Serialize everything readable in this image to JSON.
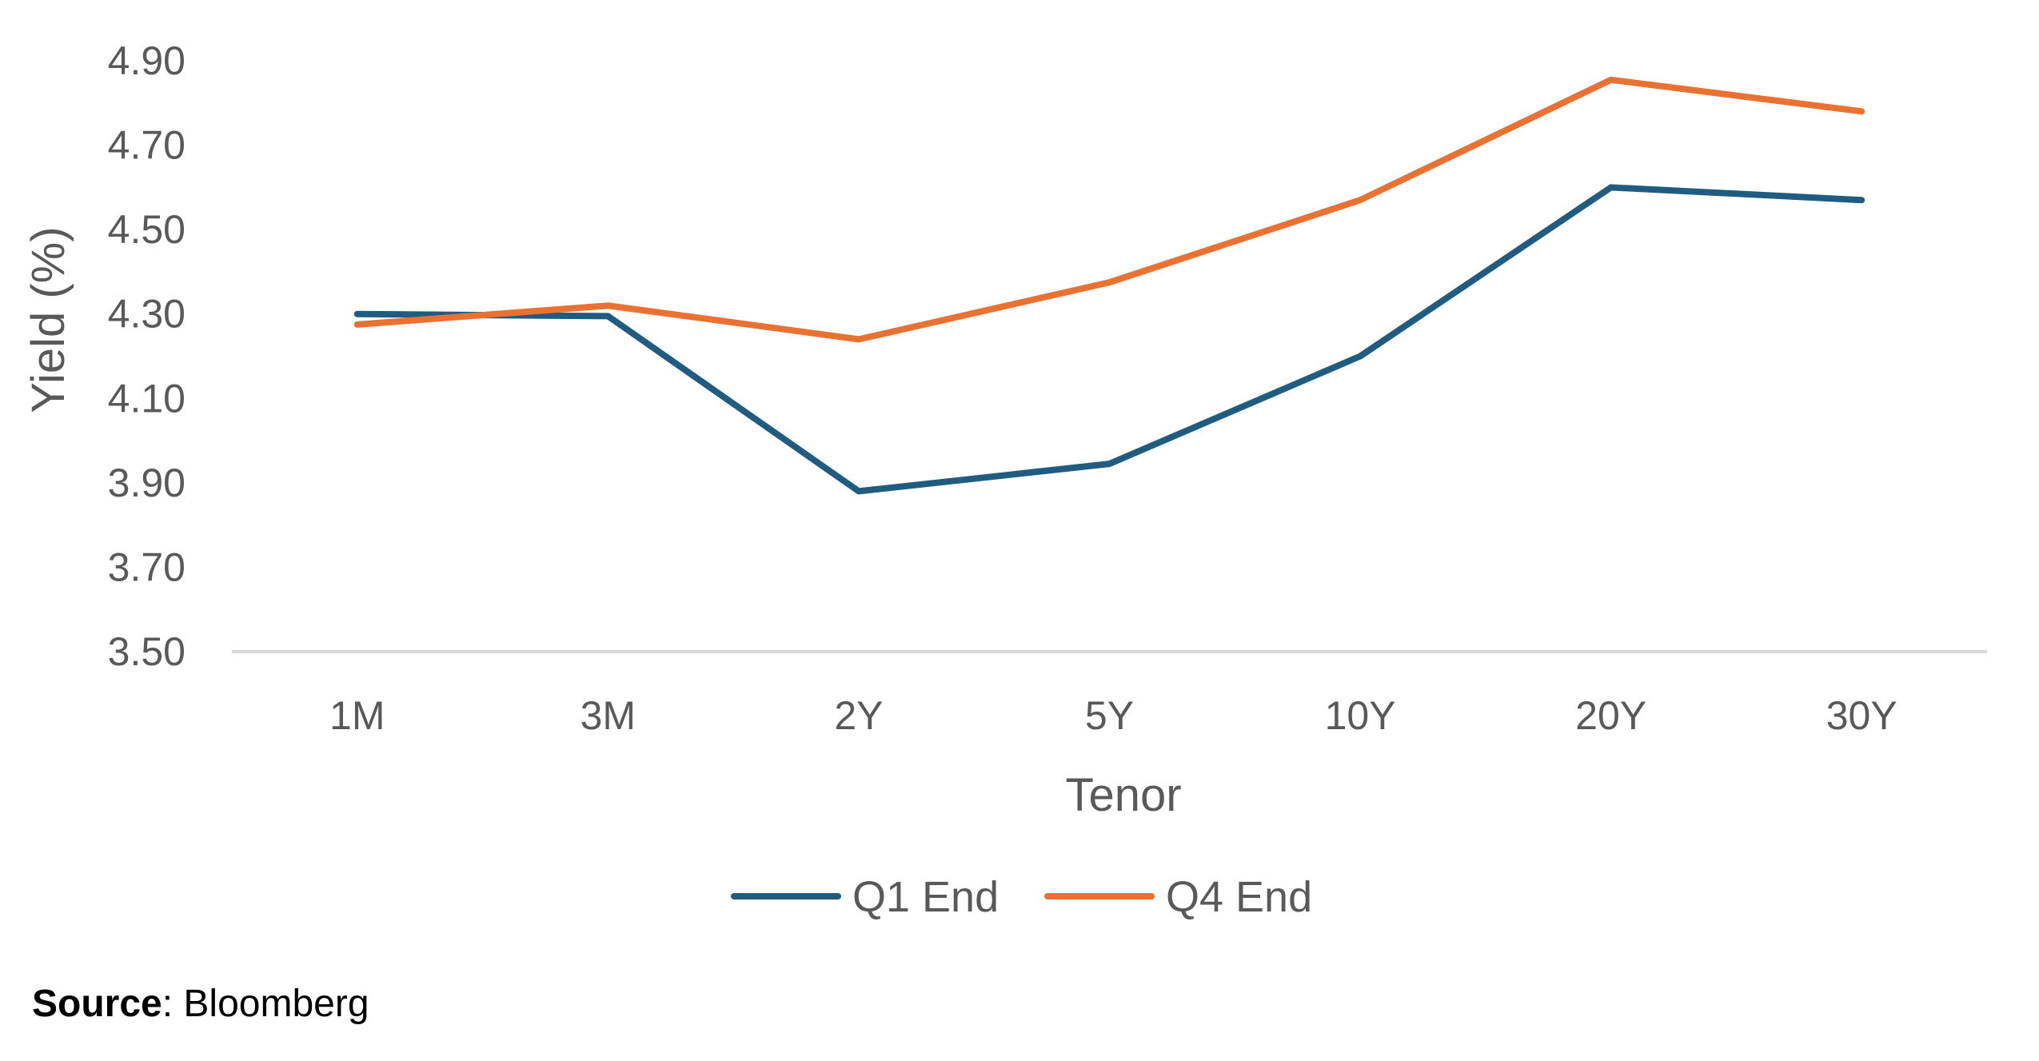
{
  "chart_data": {
    "type": "line",
    "title": "",
    "xlabel": "Tenor",
    "ylabel": "Yield (%)",
    "categories": [
      "1M",
      "3M",
      "2Y",
      "5Y",
      "10Y",
      "20Y",
      "30Y"
    ],
    "ylim": [
      3.5,
      4.9
    ],
    "yticks": [
      "3.50",
      "3.70",
      "3.90",
      "4.10",
      "4.30",
      "4.50",
      "4.70",
      "4.90"
    ],
    "grid": false,
    "legend_position": "bottom",
    "series": [
      {
        "name": "Q1 End",
        "color": "#1f5c80",
        "values": [
          4.3,
          4.295,
          3.88,
          3.945,
          4.2,
          4.6,
          4.57
        ]
      },
      {
        "name": "Q4 End",
        "color": "#e97233",
        "values": [
          4.275,
          4.32,
          4.24,
          4.375,
          4.57,
          4.855,
          4.78
        ]
      }
    ]
  },
  "source": {
    "label": "Source",
    "separator": ":",
    "value": " Bloomberg"
  }
}
